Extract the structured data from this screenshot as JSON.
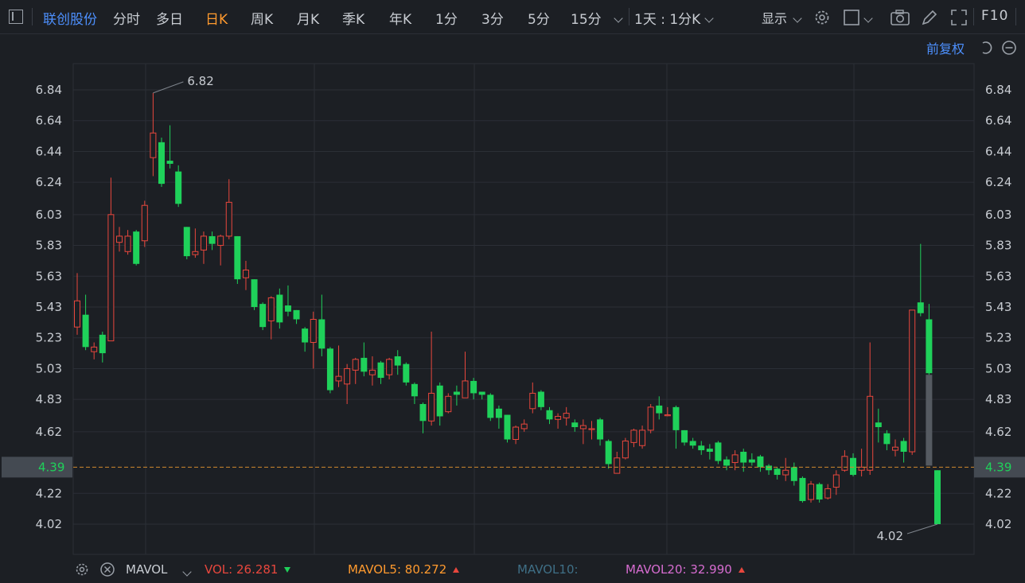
{
  "toolbar": {
    "symbol": "联创股份",
    "periods": [
      "分时",
      "多日",
      "日K",
      "周K",
      "月K",
      "季K",
      "年K",
      "1分",
      "3分",
      "5分",
      "15分"
    ],
    "active_period": "日K",
    "combo": "1天 : 1分K",
    "display": "显示",
    "f10": "F10"
  },
  "adjust_label": "前复权",
  "colors": {
    "up": "#e8473d",
    "down": "#1fd15a",
    "background": "#1c1f24",
    "grid": "#2b2f36",
    "accent": "#4d90fe",
    "active_tab": "#ff9a2e",
    "price_line": "#d08a2e"
  },
  "footer": {
    "indicator": "MAVOL",
    "vol_label": "VOL: 26.281",
    "mavol5_label": "MAVOL5: 80.272",
    "mavol10_label": "MAVOL10:",
    "mavol20_label": "MAVOL20: 32.990"
  },
  "chart_data": {
    "type": "candlestick",
    "y_ticks": [
      "6.84",
      "6.64",
      "6.44",
      "6.24",
      "6.03",
      "5.83",
      "5.63",
      "5.43",
      "5.23",
      "5.03",
      "4.83",
      "4.62",
      "4.22",
      "4.02"
    ],
    "ylim": [
      3.83,
      7.01
    ],
    "current_price": "4.39",
    "current_price_value": 4.39,
    "high_label": "6.82",
    "low_label": "4.02",
    "candles": [
      [
        5.3,
        5.47,
        5.65,
        5.25
      ],
      [
        5.38,
        5.17,
        5.51,
        5.15
      ],
      [
        5.14,
        5.17,
        5.2,
        5.09
      ],
      [
        5.25,
        5.13,
        5.27,
        5.07
      ],
      [
        5.21,
        6.03,
        6.27,
        5.21
      ],
      [
        5.85,
        5.89,
        5.95,
        5.79
      ],
      [
        5.79,
        5.89,
        5.93,
        5.77
      ],
      [
        5.92,
        5.71,
        5.93,
        5.7
      ],
      [
        5.86,
        6.09,
        6.12,
        5.82
      ],
      [
        6.4,
        6.56,
        6.82,
        6.28
      ],
      [
        6.5,
        6.23,
        6.53,
        6.21
      ],
      [
        6.38,
        6.36,
        6.61,
        6.33
      ],
      [
        6.31,
        6.1,
        6.35,
        6.08
      ],
      [
        5.95,
        5.76,
        5.95,
        5.74
      ],
      [
        5.77,
        5.79,
        5.94,
        5.75
      ],
      [
        5.8,
        5.89,
        5.92,
        5.71
      ],
      [
        5.89,
        5.84,
        5.92,
        5.8
      ],
      [
        5.83,
        5.89,
        5.9,
        5.7
      ],
      [
        5.89,
        6.11,
        6.26,
        5.87
      ],
      [
        5.89,
        5.61,
        5.89,
        5.58
      ],
      [
        5.62,
        5.67,
        5.73,
        5.54
      ],
      [
        5.61,
        5.43,
        5.61,
        5.41
      ],
      [
        5.45,
        5.3,
        5.46,
        5.28
      ],
      [
        5.34,
        5.49,
        5.5,
        5.22
      ],
      [
        5.51,
        5.33,
        5.55,
        5.29
      ],
      [
        5.44,
        5.4,
        5.57,
        5.37
      ],
      [
        5.41,
        5.35,
        5.41,
        5.32
      ],
      [
        5.29,
        5.2,
        5.3,
        5.14
      ],
      [
        5.2,
        5.35,
        5.4,
        5.03
      ],
      [
        5.35,
        5.16,
        5.51,
        5.11
      ],
      [
        5.16,
        4.89,
        5.17,
        4.87
      ],
      [
        4.95,
        4.98,
        5.18,
        4.91
      ],
      [
        4.93,
        5.03,
        5.06,
        4.8
      ],
      [
        5.02,
        5.09,
        5.1,
        4.93
      ],
      [
        5.1,
        5.01,
        5.2,
        4.98
      ],
      [
        4.99,
        5.02,
        5.11,
        4.92
      ],
      [
        5.07,
        4.97,
        5.08,
        4.93
      ],
      [
        4.99,
        5.09,
        5.1,
        4.96
      ],
      [
        5.11,
        5.05,
        5.15,
        4.99
      ],
      [
        5.06,
        4.94,
        5.07,
        4.92
      ],
      [
        4.93,
        4.85,
        4.94,
        4.8
      ],
      [
        4.8,
        4.69,
        4.81,
        4.61
      ],
      [
        4.69,
        4.87,
        5.27,
        4.66
      ],
      [
        4.92,
        4.72,
        4.94,
        4.66
      ],
      [
        4.75,
        4.85,
        4.87,
        4.74
      ],
      [
        4.88,
        4.86,
        4.92,
        4.79
      ],
      [
        4.84,
        4.95,
        5.14,
        4.85
      ],
      [
        4.95,
        4.87,
        4.97,
        4.83
      ],
      [
        4.88,
        4.86,
        4.88,
        4.83
      ],
      [
        4.86,
        4.71,
        4.87,
        4.69
      ],
      [
        4.77,
        4.71,
        4.79,
        4.64
      ],
      [
        4.73,
        4.57,
        4.73,
        4.55
      ],
      [
        4.57,
        4.65,
        4.66,
        4.54
      ],
      [
        4.64,
        4.67,
        4.7,
        4.62
      ],
      [
        4.77,
        4.87,
        4.94,
        4.74
      ],
      [
        4.88,
        4.78,
        4.89,
        4.76
      ],
      [
        4.76,
        4.7,
        4.78,
        4.67
      ],
      [
        4.7,
        4.72,
        4.74,
        4.64
      ],
      [
        4.71,
        4.74,
        4.78,
        4.66
      ],
      [
        4.68,
        4.65,
        4.7,
        4.62
      ],
      [
        4.64,
        4.66,
        4.7,
        4.54
      ],
      [
        4.64,
        4.64,
        4.69,
        4.57
      ],
      [
        4.7,
        4.57,
        4.71,
        4.53
      ],
      [
        4.56,
        4.41,
        4.57,
        4.38
      ],
      [
        4.35,
        4.45,
        4.49,
        4.35
      ],
      [
        4.45,
        4.56,
        4.58,
        4.44
      ],
      [
        4.55,
        4.63,
        4.64,
        4.52
      ],
      [
        4.53,
        4.63,
        4.66,
        4.51
      ],
      [
        4.63,
        4.78,
        4.8,
        4.61
      ],
      [
        4.79,
        4.74,
        4.85,
        4.7
      ],
      [
        4.73,
        4.73,
        4.78,
        4.72
      ],
      [
        4.78,
        4.63,
        4.79,
        4.51
      ],
      [
        4.63,
        4.55,
        4.63,
        4.53
      ],
      [
        4.56,
        4.53,
        4.58,
        4.51
      ],
      [
        4.53,
        4.5,
        4.56,
        4.47
      ],
      [
        4.51,
        4.49,
        4.54,
        4.44
      ],
      [
        4.55,
        4.43,
        4.56,
        4.41
      ],
      [
        4.44,
        4.4,
        4.46,
        4.37
      ],
      [
        4.42,
        4.47,
        4.5,
        4.37
      ],
      [
        4.49,
        4.42,
        4.51,
        4.36
      ],
      [
        4.44,
        4.42,
        4.48,
        4.4
      ],
      [
        4.46,
        4.39,
        4.47,
        4.36
      ],
      [
        4.4,
        4.37,
        4.41,
        4.34
      ],
      [
        4.38,
        4.34,
        4.39,
        4.31
      ],
      [
        4.34,
        4.37,
        4.45,
        4.3
      ],
      [
        4.39,
        4.3,
        4.42,
        4.27
      ],
      [
        4.32,
        4.17,
        4.33,
        4.16
      ],
      [
        4.18,
        4.28,
        4.3,
        4.16
      ],
      [
        4.28,
        4.18,
        4.29,
        4.16
      ],
      [
        4.19,
        4.25,
        4.28,
        4.18
      ],
      [
        4.26,
        4.34,
        4.37,
        4.21
      ],
      [
        4.37,
        4.46,
        4.5,
        4.36
      ],
      [
        4.45,
        4.34,
        4.48,
        4.33
      ],
      [
        4.37,
        4.39,
        4.51,
        4.33
      ],
      [
        4.37,
        4.85,
        5.2,
        4.34
      ],
      [
        4.68,
        4.65,
        4.77,
        4.55
      ],
      [
        4.61,
        4.54,
        4.63,
        4.5
      ],
      [
        4.5,
        4.52,
        4.57,
        4.46
      ],
      [
        4.56,
        4.49,
        4.58,
        4.42
      ],
      [
        4.49,
        5.41,
        5.41,
        4.47
      ],
      [
        5.46,
        5.39,
        5.84,
        5.37
      ],
      [
        5.35,
        5.0,
        5.45,
        4.99
      ],
      [
        4.37,
        4.02,
        4.37,
        4.02
      ]
    ],
    "shadow_bar": [
      4.99,
      4.4
    ]
  }
}
